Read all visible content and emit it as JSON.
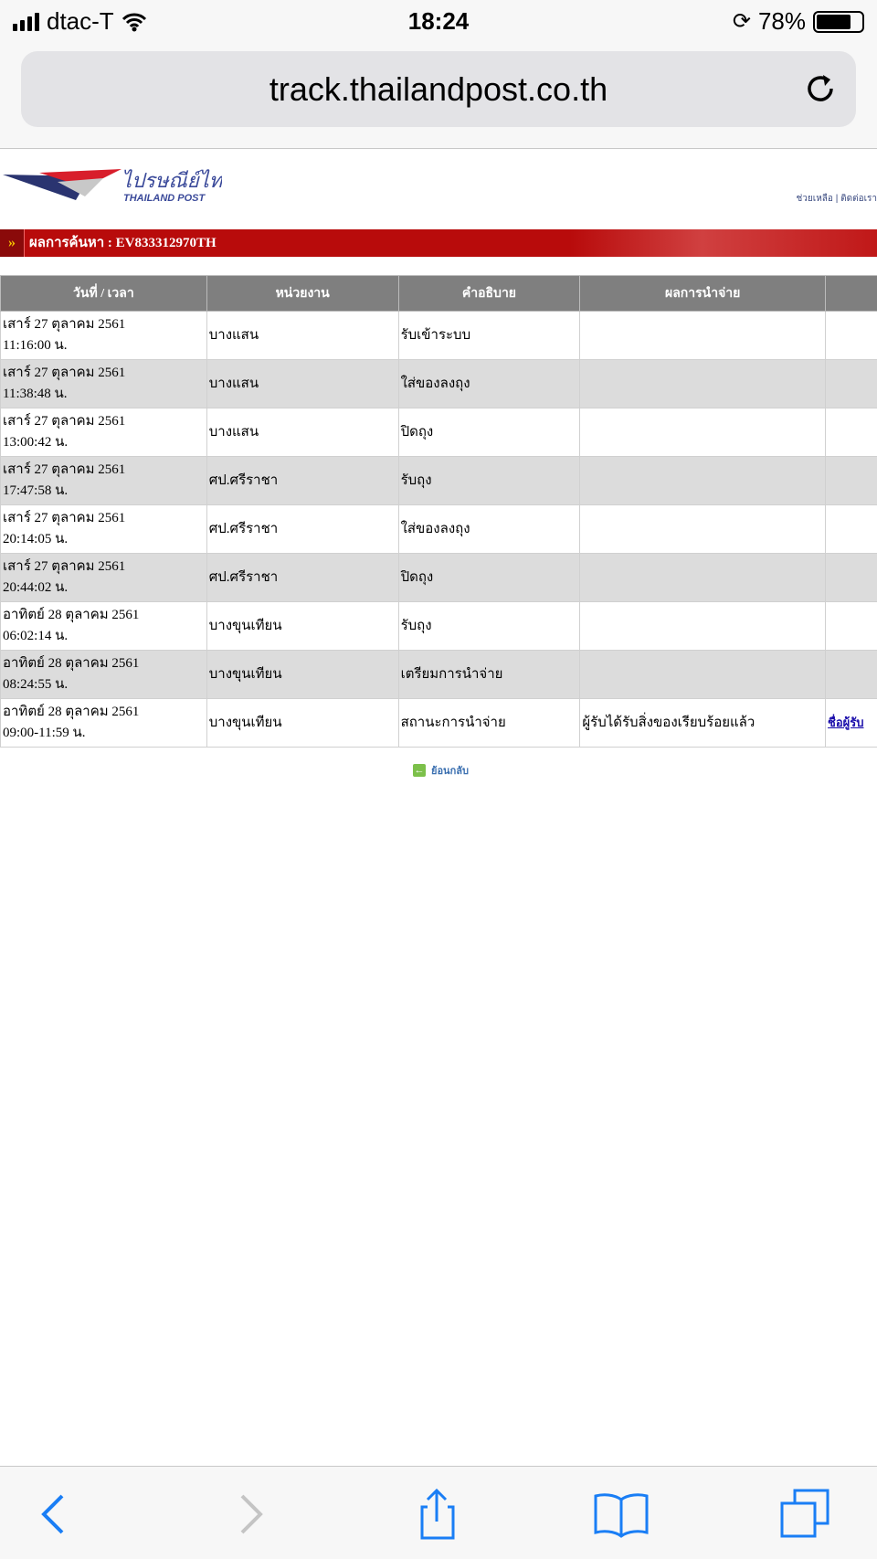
{
  "status_bar": {
    "carrier": "dtac-T",
    "time": "18:24",
    "battery": "78%",
    "battery_level": 0.78
  },
  "browser": {
    "url": "track.thailandpost.co.th"
  },
  "site": {
    "logo_text_th": "ไปรษณีย์ไทย",
    "logo_text_en": "THAILAND POST",
    "help_link": "ช่วยเหลือ",
    "contact_link": "ติดต่อเรา",
    "separator": "|"
  },
  "result": {
    "title": "ผลการค้นหา : EV833312970TH",
    "arrow": "»"
  },
  "table": {
    "headers": [
      "วันที่ / เวลา",
      "หน่วยงาน",
      "คำอธิบาย",
      "ผลการนำจ่าย",
      ""
    ],
    "rows": [
      {
        "date": "เสาร์ 27 ตุลาคม 2561",
        "time": "11:16:00 น.",
        "office": "บางแสน",
        "desc": "รับเข้าระบบ",
        "result": "",
        "link": ""
      },
      {
        "date": "เสาร์ 27 ตุลาคม 2561",
        "time": "11:38:48 น.",
        "office": "บางแสน",
        "desc": "ใส่ของลงถุง",
        "result": "",
        "link": ""
      },
      {
        "date": "เสาร์ 27 ตุลาคม 2561",
        "time": "13:00:42 น.",
        "office": "บางแสน",
        "desc": "ปิดถุง",
        "result": "",
        "link": ""
      },
      {
        "date": "เสาร์ 27 ตุลาคม 2561",
        "time": "17:47:58 น.",
        "office": "ศป.ศรีราชา",
        "desc": "รับถุง",
        "result": "",
        "link": ""
      },
      {
        "date": "เสาร์ 27 ตุลาคม 2561",
        "time": "20:14:05 น.",
        "office": "ศป.ศรีราชา",
        "desc": "ใส่ของลงถุง",
        "result": "",
        "link": ""
      },
      {
        "date": "เสาร์ 27 ตุลาคม 2561",
        "time": "20:44:02 น.",
        "office": "ศป.ศรีราชา",
        "desc": "ปิดถุง",
        "result": "",
        "link": ""
      },
      {
        "date": "อาทิตย์ 28 ตุลาคม 2561",
        "time": "06:02:14 น.",
        "office": "บางขุนเทียน",
        "desc": "รับถุง",
        "result": "",
        "link": ""
      },
      {
        "date": "อาทิตย์ 28 ตุลาคม 2561",
        "time": "08:24:55 น.",
        "office": "บางขุนเทียน",
        "desc": "เตรียมการนำจ่าย",
        "result": "",
        "link": ""
      },
      {
        "date": "อาทิตย์ 28 ตุลาคม 2561",
        "time": "09:00-11:59 น.",
        "office": "บางขุนเทียน",
        "desc": "สถานะการนำจ่าย",
        "result": "ผู้รับได้รับสิ่งของเรียบร้อยแล้ว",
        "link": "ชื่อผู้รับ"
      }
    ]
  },
  "back_link": "ย้อนกลับ",
  "colors": {
    "red_bar": "#b80b0b",
    "header_gray": "#7f7f7f",
    "alt_row": "#dcdcdc",
    "ios_blue": "#1a7ef5"
  }
}
